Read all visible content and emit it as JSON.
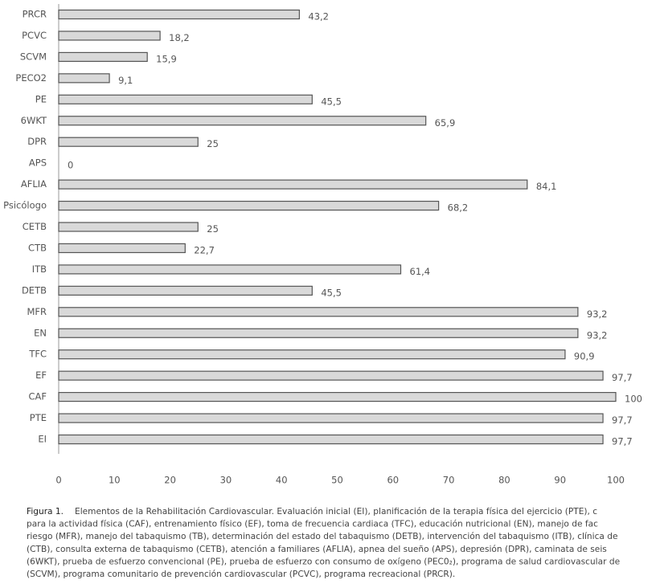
{
  "chart_data": {
    "type": "barh",
    "categories": [
      "PRCR",
      "PCVC",
      "SCVM",
      "PECO2",
      "PE",
      "6WKT",
      "DPR",
      "APS",
      "AFLIA",
      "Psicólogo",
      "CETB",
      "CTB",
      "ITB",
      "DETB",
      "MFR",
      "EN",
      "TFC",
      "EF",
      "CAF",
      "PTE",
      "EI"
    ],
    "values": [
      43.2,
      18.2,
      15.9,
      9.1,
      45.5,
      65.9,
      25,
      0,
      84.1,
      68.2,
      25,
      22.7,
      61.4,
      45.5,
      93.2,
      93.2,
      90.9,
      97.7,
      100,
      97.7,
      97.7
    ],
    "value_labels": [
      "43,2",
      "18,2",
      "15,9",
      "9,1",
      "45,5",
      "65,9",
      "25",
      "0",
      "84,1",
      "68,2",
      "25",
      "22,7",
      "61,4",
      "45,5",
      "93,2",
      "93,2",
      "90,9",
      "97,7",
      "100",
      "97,7",
      "97,7"
    ],
    "color": "#d9d9d9",
    "xlim": [
      0,
      100
    ],
    "xticks": [
      0,
      10,
      20,
      30,
      40,
      50,
      60,
      70,
      80,
      90,
      100
    ]
  },
  "caption": {
    "label": "Figura 1.",
    "lines": [
      "Elementos de la Rehabilitación Cardiovascular. Evaluación inicial (EI), planificación de la terapia física del ejercicio (PTE), c",
      "para la actividad física (CAF), entrenamiento físico (EF), toma de frecuencia cardiaca (TFC), educación nutricional (EN), manejo de fac",
      "riesgo (MFR), manejo del tabaquismo (TB), determinación del estado del tabaquismo (DETB), intervención del tabaquismo (ITB), clínica de",
      "(CTB), consulta externa de tabaquismo (CETB), atención a familiares (AFLIA), apnea del sueño (APS), depresión (DPR), caminata de seis",
      "(6WKT), prueba de esfuerzo convencional (PE), prueba de esfuerzo con consumo de oxígeno (PEC0₂), programa de salud cardiovascular de",
      "(SCVM), programa comunitario de prevención cardiovascular (PCVC), programa recreacional (PRCR)."
    ]
  }
}
